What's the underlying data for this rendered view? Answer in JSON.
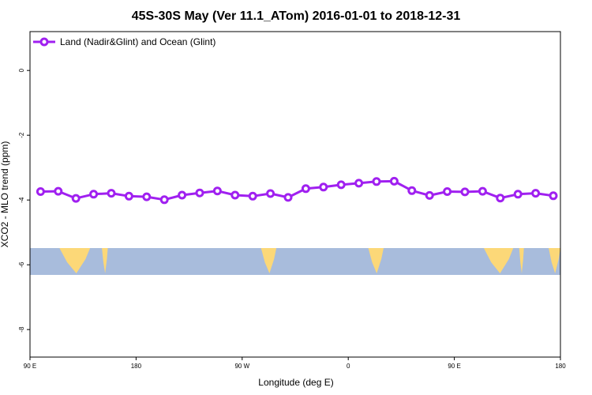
{
  "chart_data": {
    "type": "line",
    "title": "45S-30S May (Ver 11.1_ATom)   2016-01-01 to 2018-12-31",
    "xlabel": "Longitude (deg E)",
    "ylabel": "XCO2 - MLO trend (ppm)",
    "x_ticks": [
      {
        "value": 90,
        "label": "90 E"
      },
      {
        "value": 180,
        "label": "180"
      },
      {
        "value": 270,
        "label": "90 W"
      },
      {
        "value": 360,
        "label": "0"
      },
      {
        "value": 450,
        "label": "90 E"
      },
      {
        "value": 540,
        "label": "180"
      }
    ],
    "y_ticks": [
      0,
      -2,
      -4,
      -6,
      -8
    ],
    "xlim": [
      90,
      540
    ],
    "ylim": [
      -8.85,
      1.2
    ],
    "grid": false,
    "legend_position": "top-left",
    "colors": {
      "series": "#a020f0",
      "ocean": "#a8bcdc",
      "land": "#fcd878"
    },
    "series": [
      {
        "name": "Land (Nadir&Glint) and Ocean (Glint)",
        "x": [
          99,
          114,
          129,
          144,
          159,
          174,
          189,
          204,
          219,
          234,
          249,
          264,
          279,
          294,
          309,
          324,
          339,
          354,
          369,
          384,
          399,
          414,
          429,
          444,
          459,
          474,
          489,
          504,
          519,
          534
        ],
        "values": [
          -3.74,
          -3.73,
          -3.95,
          -3.82,
          -3.79,
          -3.88,
          -3.9,
          -3.99,
          -3.85,
          -3.78,
          -3.72,
          -3.85,
          -3.88,
          -3.8,
          -3.92,
          -3.65,
          -3.6,
          -3.53,
          -3.48,
          -3.43,
          -3.42,
          -3.71,
          -3.86,
          -3.74,
          -3.75,
          -3.73,
          -3.94,
          -3.82,
          -3.79,
          -3.87
        ]
      }
    ],
    "map_inset": {
      "latitude_band": "45S-30S",
      "land_longitudes": [
        [
          115,
          141
        ],
        [
          151,
          156
        ],
        [
          286,
          299
        ],
        [
          377,
          390
        ],
        [
          475,
          500
        ],
        [
          505,
          509
        ],
        [
          530,
          540
        ]
      ]
    }
  }
}
